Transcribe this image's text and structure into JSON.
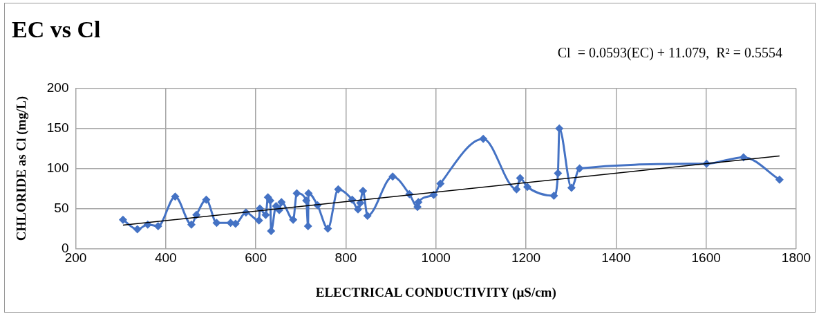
{
  "chart_data": {
    "type": "line",
    "title": "EC vs Cl",
    "xlabel": "ELECTRICAL CONDUCTIVITY (µS/cm)",
    "ylabel": "CHLORIDE as Cl (mg/L)",
    "annotations": [
      "Cl  = 0.0593(EC) + 11.079,  R² = 0.5554"
    ],
    "xlim": [
      200,
      1800
    ],
    "xticks": [
      200,
      400,
      600,
      800,
      1000,
      1200,
      1400,
      1600,
      1800
    ],
    "ylim": [
      0,
      200
    ],
    "yticks": [
      0,
      50,
      100,
      150,
      200
    ],
    "grid": true,
    "legend": false,
    "marker": "diamond",
    "series": [
      {
        "color": "#4472c4",
        "x": [
          305,
          337,
          360,
          383,
          421,
          457,
          468,
          490,
          513,
          544,
          555,
          578,
          607,
          609,
          622,
          627,
          632,
          634,
          645,
          652,
          657,
          683,
          691,
          712,
          716,
          717,
          737,
          760,
          783,
          814,
          827,
          832,
          838,
          848,
          904,
          941,
          959,
          961,
          995,
          1010,
          1105,
          1179,
          1187,
          1203,
          1262,
          1271,
          1274,
          1301,
          1319,
          1601,
          1683,
          1763
        ],
        "values": [
          36,
          24,
          30,
          28,
          65,
          30,
          42,
          61,
          32,
          32,
          31,
          45,
          35,
          50,
          42,
          64,
          60,
          22,
          53,
          48,
          58,
          36,
          69,
          60,
          28,
          69,
          54,
          25,
          74,
          61,
          49,
          57,
          72,
          41,
          90,
          68,
          52,
          58,
          67,
          81,
          137,
          74,
          88,
          77,
          66,
          94,
          150,
          76,
          100,
          106,
          114,
          86
        ]
      },
      {
        "type": "line",
        "color": "#000000",
        "marker": "none",
        "x": [
          305,
          1763
        ],
        "values": [
          29.2,
          115.6
        ]
      }
    ]
  }
}
